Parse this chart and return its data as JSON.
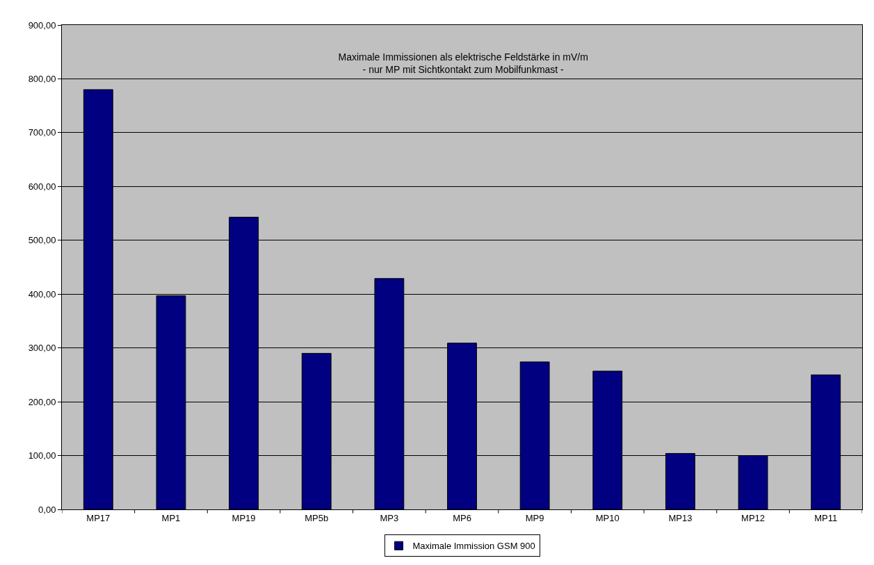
{
  "chart_data": {
    "type": "bar",
    "title": "Maximale Immissionen als elektrische Feldstärke in mV/m\n- nur MP mit Sichtkontakt zum Mobilfunkmast -",
    "categories": [
      "MP17",
      "MP1",
      "MP19",
      "MP5b",
      "MP3",
      "MP6",
      "MP9",
      "MP10",
      "MP13",
      "MP12",
      "MP11"
    ],
    "series": [
      {
        "name": "Maximale Immission GSM 900",
        "color": "#000080",
        "values": [
          780,
          397,
          543,
          290,
          429,
          309,
          274,
          257,
          104,
          100,
          250
        ]
      }
    ],
    "ylim": [
      0,
      900
    ],
    "yticks": [
      {
        "value": 0,
        "label": "0,00"
      },
      {
        "value": 100,
        "label": "100,00"
      },
      {
        "value": 200,
        "label": "200,00"
      },
      {
        "value": 300,
        "label": "300,00"
      },
      {
        "value": 400,
        "label": "400,00"
      },
      {
        "value": 500,
        "label": "500,00"
      },
      {
        "value": 600,
        "label": "600,00"
      },
      {
        "value": 700,
        "label": "700,00"
      },
      {
        "value": 800,
        "label": "800,00"
      },
      {
        "value": 900,
        "label": "900,00"
      }
    ],
    "grid": "y",
    "legend": "bottom"
  }
}
